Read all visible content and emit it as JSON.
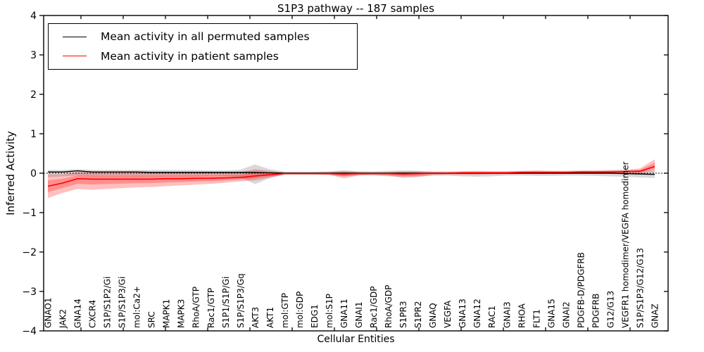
{
  "chart_data": {
    "type": "line",
    "title": "S1P3 pathway -- 187 samples",
    "xlabel": "Cellular Entities",
    "ylabel": "Inferred Activity",
    "ylim": [
      -4,
      4
    ],
    "yticks": [
      -4,
      -3,
      -2,
      -1,
      0,
      1,
      2,
      3,
      4
    ],
    "grid": false,
    "zero_reference_line": true,
    "legend_position": "upper left",
    "categories": [
      "GNAO1",
      "JAK2",
      "GNA14",
      "CXCR4",
      "S1P/S1P2/Gi",
      "S1P/S1P3/Gi",
      "mol:Ca2+",
      "SRC",
      "MAPK1",
      "MAPK3",
      "RhoA/GTP",
      "Rac1/GTP",
      "S1P1/S1P/Gi",
      "S1P/S1P3/Gq",
      "AKT3",
      "AKT1",
      "mol:GTP",
      "mol:GDP",
      "EDG1",
      "mol:S1P",
      "GNA11",
      "GNAI1",
      "Rac1/GDP",
      "RhoA/GDP",
      "S1PR3",
      "S1PR2",
      "GNAQ",
      "VEGFA",
      "GNA13",
      "GNA12",
      "RAC1",
      "GNAI3",
      "RHOA",
      "FLT1",
      "GNA15",
      "GNAI2",
      "PDGFB-D/PDGFRB",
      "PDGFRB",
      "G12/G13",
      "VEGFR1 homodimer/VEGFA homodimer",
      "S1P/S1P3/G12/G13",
      "GNAZ"
    ],
    "series": [
      {
        "name": "Mean activity in all permuted samples",
        "color": "#000000",
        "band_color": "rgba(0,0,0,0.15)",
        "values": [
          0.03,
          0.03,
          0.06,
          0.03,
          0.03,
          0.03,
          0.03,
          0.02,
          0.02,
          0.02,
          0.02,
          0.02,
          0.02,
          0.02,
          0.02,
          0.01,
          0,
          0,
          0,
          0,
          0,
          0,
          0,
          0,
          0,
          0,
          0,
          0,
          0,
          0,
          0,
          0,
          0,
          0,
          0,
          0,
          0,
          0,
          0,
          -0.01,
          -0.02,
          -0.03
        ],
        "band_low": [
          -0.1,
          -0.08,
          -0.06,
          -0.08,
          -0.08,
          -0.08,
          -0.08,
          -0.08,
          -0.08,
          -0.08,
          -0.08,
          -0.07,
          -0.07,
          -0.1,
          -0.28,
          -0.12,
          -0.04,
          -0.04,
          -0.04,
          -0.05,
          -0.08,
          -0.05,
          -0.06,
          -0.08,
          -0.09,
          -0.08,
          -0.06,
          -0.06,
          -0.08,
          -0.09,
          -0.08,
          -0.06,
          -0.06,
          -0.07,
          -0.07,
          -0.06,
          -0.06,
          -0.07,
          -0.08,
          -0.09,
          -0.11,
          -0.12
        ],
        "band_high": [
          0.08,
          0.08,
          0.1,
          0.08,
          0.08,
          0.08,
          0.08,
          0.08,
          0.08,
          0.08,
          0.08,
          0.07,
          0.07,
          0.09,
          0.22,
          0.1,
          0.04,
          0.04,
          0.04,
          0.05,
          0.07,
          0.05,
          0.05,
          0.06,
          0.07,
          0.06,
          0.05,
          0.05,
          0.05,
          0.06,
          0.05,
          0.05,
          0.05,
          0.05,
          0.05,
          0.05,
          0.05,
          0.05,
          0.06,
          0.06,
          0.07,
          0.07
        ]
      },
      {
        "name": "Mean activity in patient samples",
        "color": "#ff0000",
        "band_color": "rgba(255,0,0,0.25)",
        "values": [
          -0.33,
          -0.25,
          -0.14,
          -0.15,
          -0.15,
          -0.15,
          -0.15,
          -0.15,
          -0.14,
          -0.14,
          -0.13,
          -0.13,
          -0.12,
          -0.11,
          -0.07,
          -0.04,
          -0.01,
          -0.01,
          -0.01,
          -0.01,
          -0.02,
          -0.01,
          -0.01,
          -0.01,
          -0.02,
          -0.01,
          0,
          0,
          0.01,
          0.01,
          0.01,
          0.01,
          0.02,
          0.02,
          0.02,
          0.02,
          0.03,
          0.03,
          0.03,
          0.04,
          0.05,
          0.17
        ],
        "band_low": [
          -0.63,
          -0.5,
          -0.4,
          -0.42,
          -0.4,
          -0.38,
          -0.36,
          -0.35,
          -0.33,
          -0.31,
          -0.29,
          -0.27,
          -0.24,
          -0.21,
          -0.18,
          -0.12,
          -0.03,
          -0.03,
          -0.03,
          -0.04,
          -0.13,
          -0.06,
          -0.04,
          -0.06,
          -0.12,
          -0.1,
          -0.05,
          -0.04,
          -0.04,
          -0.04,
          -0.03,
          -0.03,
          -0.02,
          -0.02,
          -0.02,
          -0.02,
          -0.01,
          -0.01,
          -0.01,
          0.0,
          0.0,
          0.05
        ],
        "band_high": [
          -0.03,
          -0.03,
          0.03,
          0.02,
          0.02,
          0.02,
          0.02,
          0.02,
          0.02,
          0.02,
          0.02,
          0.02,
          0.02,
          0.03,
          0.1,
          0.06,
          0.02,
          0.02,
          0.02,
          0.03,
          0.06,
          0.03,
          0.02,
          0.03,
          0.05,
          0.05,
          0.03,
          0.03,
          0.04,
          0.04,
          0.04,
          0.04,
          0.06,
          0.07,
          0.06,
          0.06,
          0.07,
          0.07,
          0.08,
          0.09,
          0.12,
          0.35
        ]
      }
    ]
  }
}
